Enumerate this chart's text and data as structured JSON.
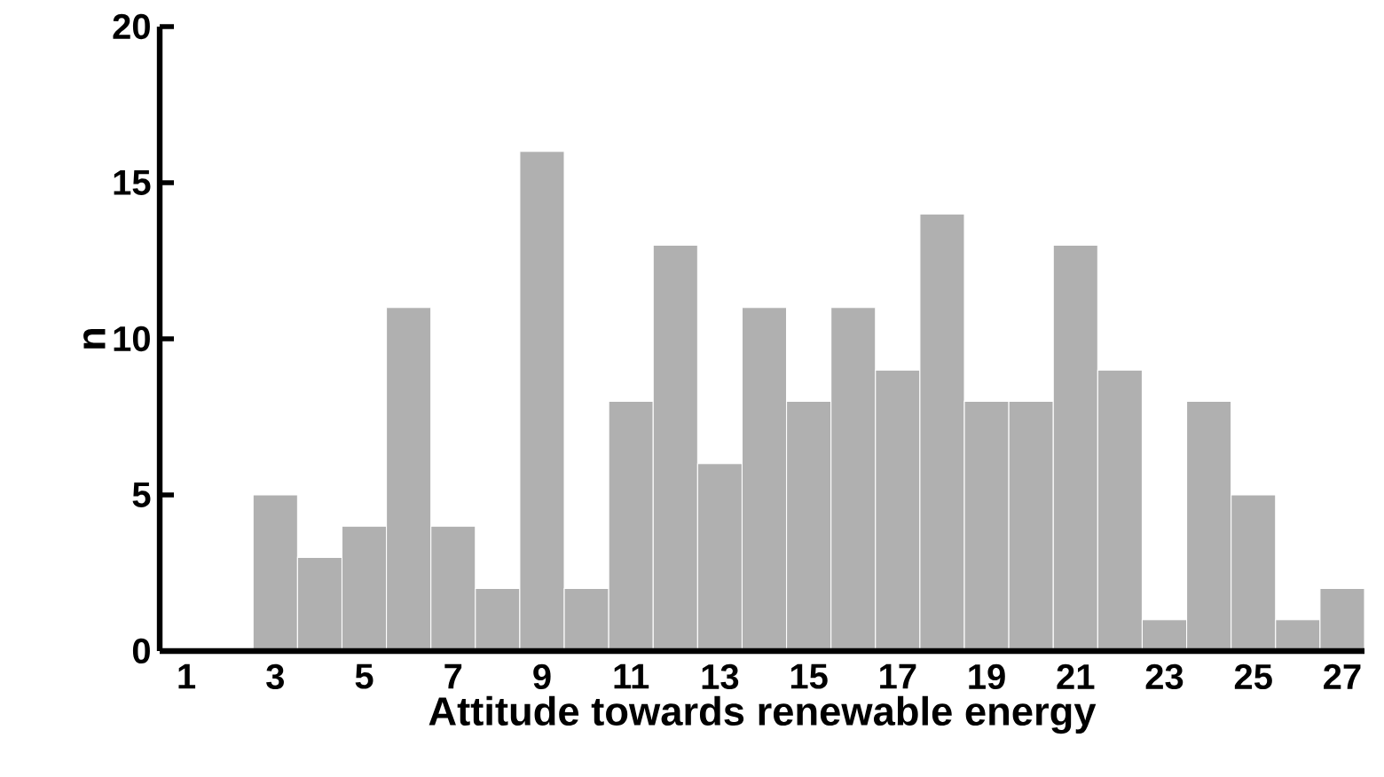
{
  "chart_data": {
    "type": "histogram",
    "xlabel": "Attitude towards renewable energy",
    "ylabel": "n",
    "bins": [
      2.5,
      3.5,
      4.5,
      5.5,
      6.5,
      7.5,
      8.5,
      9.5,
      10.5,
      11.5,
      12.5,
      13.5,
      14.5,
      15.5,
      16.5,
      17.5,
      18.5,
      19.5,
      20.5,
      21.5,
      22.5,
      23.5,
      24.5,
      25.5,
      26.5,
      27.5
    ],
    "values": [
      5,
      3,
      4,
      11,
      4,
      2,
      16,
      2,
      8,
      13,
      6,
      11,
      8,
      11,
      9,
      14,
      8,
      8,
      13,
      9,
      1,
      8,
      5,
      1,
      2
    ],
    "color": "#b0b0b0",
    "xlim": [
      0.4,
      27.5
    ],
    "ylim": [
      0,
      20
    ],
    "xticks": [
      1,
      3,
      5,
      7,
      9,
      11,
      13,
      15,
      17,
      19,
      21,
      23,
      25,
      27
    ],
    "yticks": [
      0,
      5,
      10,
      15,
      20
    ]
  }
}
